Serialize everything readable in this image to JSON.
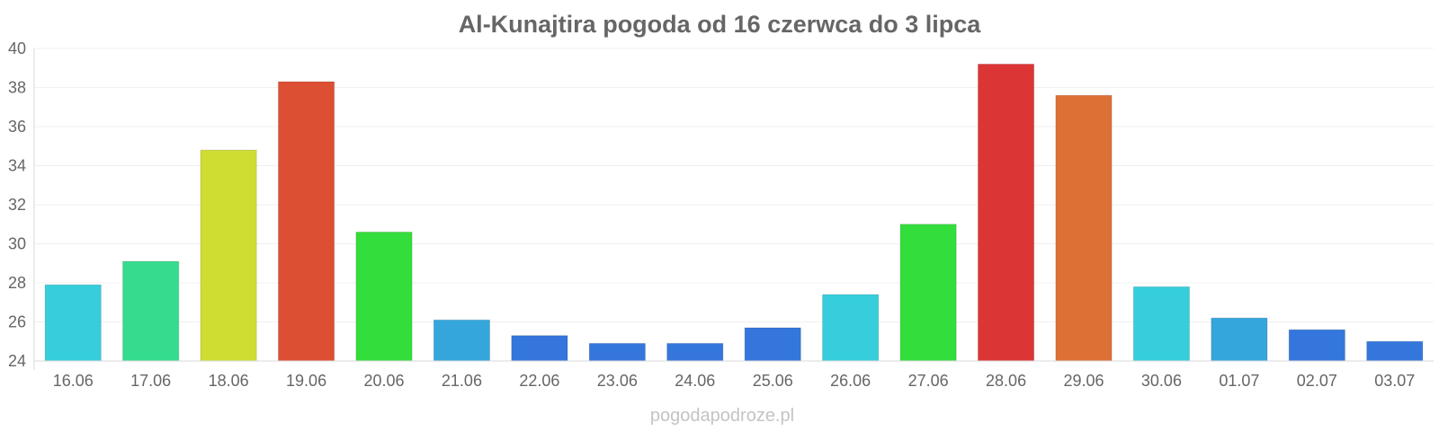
{
  "chart_data": {
    "type": "bar",
    "title": "Al-Kunajtira pogoda od 16 czerwca do 3 lipca",
    "xlabel": "",
    "ylabel": "",
    "ylim": [
      24,
      40
    ],
    "yticks": [
      24,
      26,
      28,
      30,
      32,
      34,
      36,
      38,
      40
    ],
    "grid": true,
    "categories": [
      "16.06",
      "17.06",
      "18.06",
      "19.06",
      "20.06",
      "21.06",
      "22.06",
      "23.06",
      "24.06",
      "25.06",
      "26.06",
      "27.06",
      "28.06",
      "29.06",
      "30.06",
      "01.07",
      "02.07",
      "03.07"
    ],
    "values": [
      27.9,
      29.1,
      34.8,
      38.3,
      30.6,
      26.1,
      25.3,
      24.9,
      24.9,
      25.7,
      27.4,
      31.0,
      39.2,
      37.6,
      27.8,
      26.2,
      25.6,
      25.0
    ],
    "colors": [
      "#36cedc",
      "#35dc8e",
      "#cfdd33",
      "#dd4f33",
      "#33dd3b",
      "#34a6dc",
      "#3476dc",
      "#3476dc",
      "#3476dc",
      "#3476dc",
      "#36cedc",
      "#33dd3b",
      "#dc3535",
      "#dd7035",
      "#36cedc",
      "#34a6dc",
      "#3476dc",
      "#3476dc"
    ]
  },
  "watermark": "pogodapodroze.pl"
}
